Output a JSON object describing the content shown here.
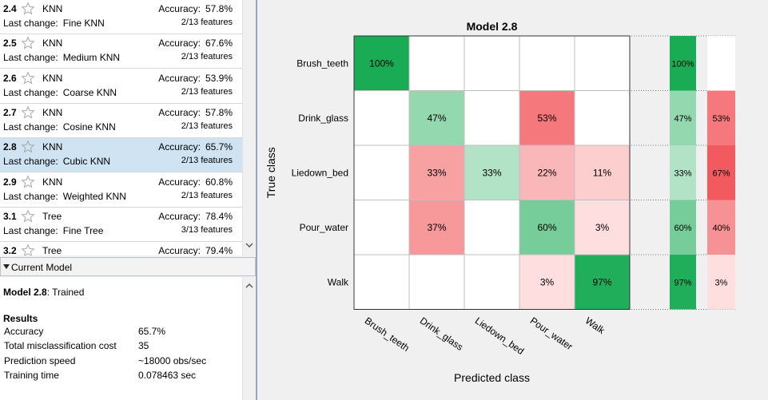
{
  "model_list": [
    {
      "id": "2.4",
      "type": "KNN",
      "accuracy_label": "Accuracy:",
      "accuracy": "57.8%",
      "change_label": "Last change:",
      "change": "Fine KNN",
      "features": "2/13 features",
      "selected": false
    },
    {
      "id": "2.5",
      "type": "KNN",
      "accuracy_label": "Accuracy:",
      "accuracy": "67.6%",
      "change_label": "Last change:",
      "change": "Medium KNN",
      "features": "2/13 features",
      "selected": false
    },
    {
      "id": "2.6",
      "type": "KNN",
      "accuracy_label": "Accuracy:",
      "accuracy": "53.9%",
      "change_label": "Last change:",
      "change": "Coarse KNN",
      "features": "2/13 features",
      "selected": false
    },
    {
      "id": "2.7",
      "type": "KNN",
      "accuracy_label": "Accuracy:",
      "accuracy": "57.8%",
      "change_label": "Last change:",
      "change": "Cosine KNN",
      "features": "2/13 features",
      "selected": false
    },
    {
      "id": "2.8",
      "type": "KNN",
      "accuracy_label": "Accuracy:",
      "accuracy": "65.7%",
      "change_label": "Last change:",
      "change": "Cubic KNN",
      "features": "2/13 features",
      "selected": true
    },
    {
      "id": "2.9",
      "type": "KNN",
      "accuracy_label": "Accuracy:",
      "accuracy": "60.8%",
      "change_label": "Last change:",
      "change": "Weighted KNN",
      "features": "2/13 features",
      "selected": false
    },
    {
      "id": "3.1",
      "type": "Tree",
      "accuracy_label": "Accuracy:",
      "accuracy": "78.4%",
      "change_label": "Last change:",
      "change": "Fine Tree",
      "features": "3/13 features",
      "selected": false
    },
    {
      "id": "3.2",
      "type": "Tree",
      "accuracy_label": "Accuracy:",
      "accuracy": "79.4%",
      "change_label": "",
      "change": "",
      "features": "",
      "selected": false
    }
  ],
  "current_model": {
    "header": "Current Model",
    "name": "Model 2.8",
    "status": ": Trained",
    "results_heading": "Results",
    "results": [
      {
        "key": "Accuracy",
        "value": "65.7%"
      },
      {
        "key": "Total misclassification cost",
        "value": "35"
      },
      {
        "key": "Prediction speed",
        "value": "~18000 obs/sec"
      },
      {
        "key": "Training time",
        "value": "0.078463 sec"
      }
    ]
  },
  "icons": {
    "star": "star-outline-icon",
    "collapse": "triangle-down-icon",
    "scroll_up": "chevron-up-icon",
    "scroll_down": "chevron-down-icon"
  },
  "colors": {
    "selected_row": "#cfe3f2",
    "correct_high": "#1aab55",
    "error_high": "#f0555a"
  },
  "chart_data": {
    "type": "heatmap",
    "title": "Model 2.8",
    "xlabel": "Predicted class",
    "ylabel": "True class",
    "classes": [
      "Brush_teeth",
      "Drink_glass",
      "Liedown_bed",
      "Pour_water",
      "Walk"
    ],
    "cells": [
      [
        100,
        null,
        null,
        null,
        null
      ],
      [
        null,
        47,
        null,
        53,
        null
      ],
      [
        null,
        33,
        33,
        22,
        11
      ],
      [
        null,
        37,
        null,
        60,
        3
      ],
      [
        null,
        null,
        null,
        3,
        97
      ]
    ],
    "true_positive_rate": [
      100,
      47,
      33,
      60,
      97
    ],
    "false_negative_rate": [
      null,
      53,
      67,
      40,
      3
    ]
  }
}
